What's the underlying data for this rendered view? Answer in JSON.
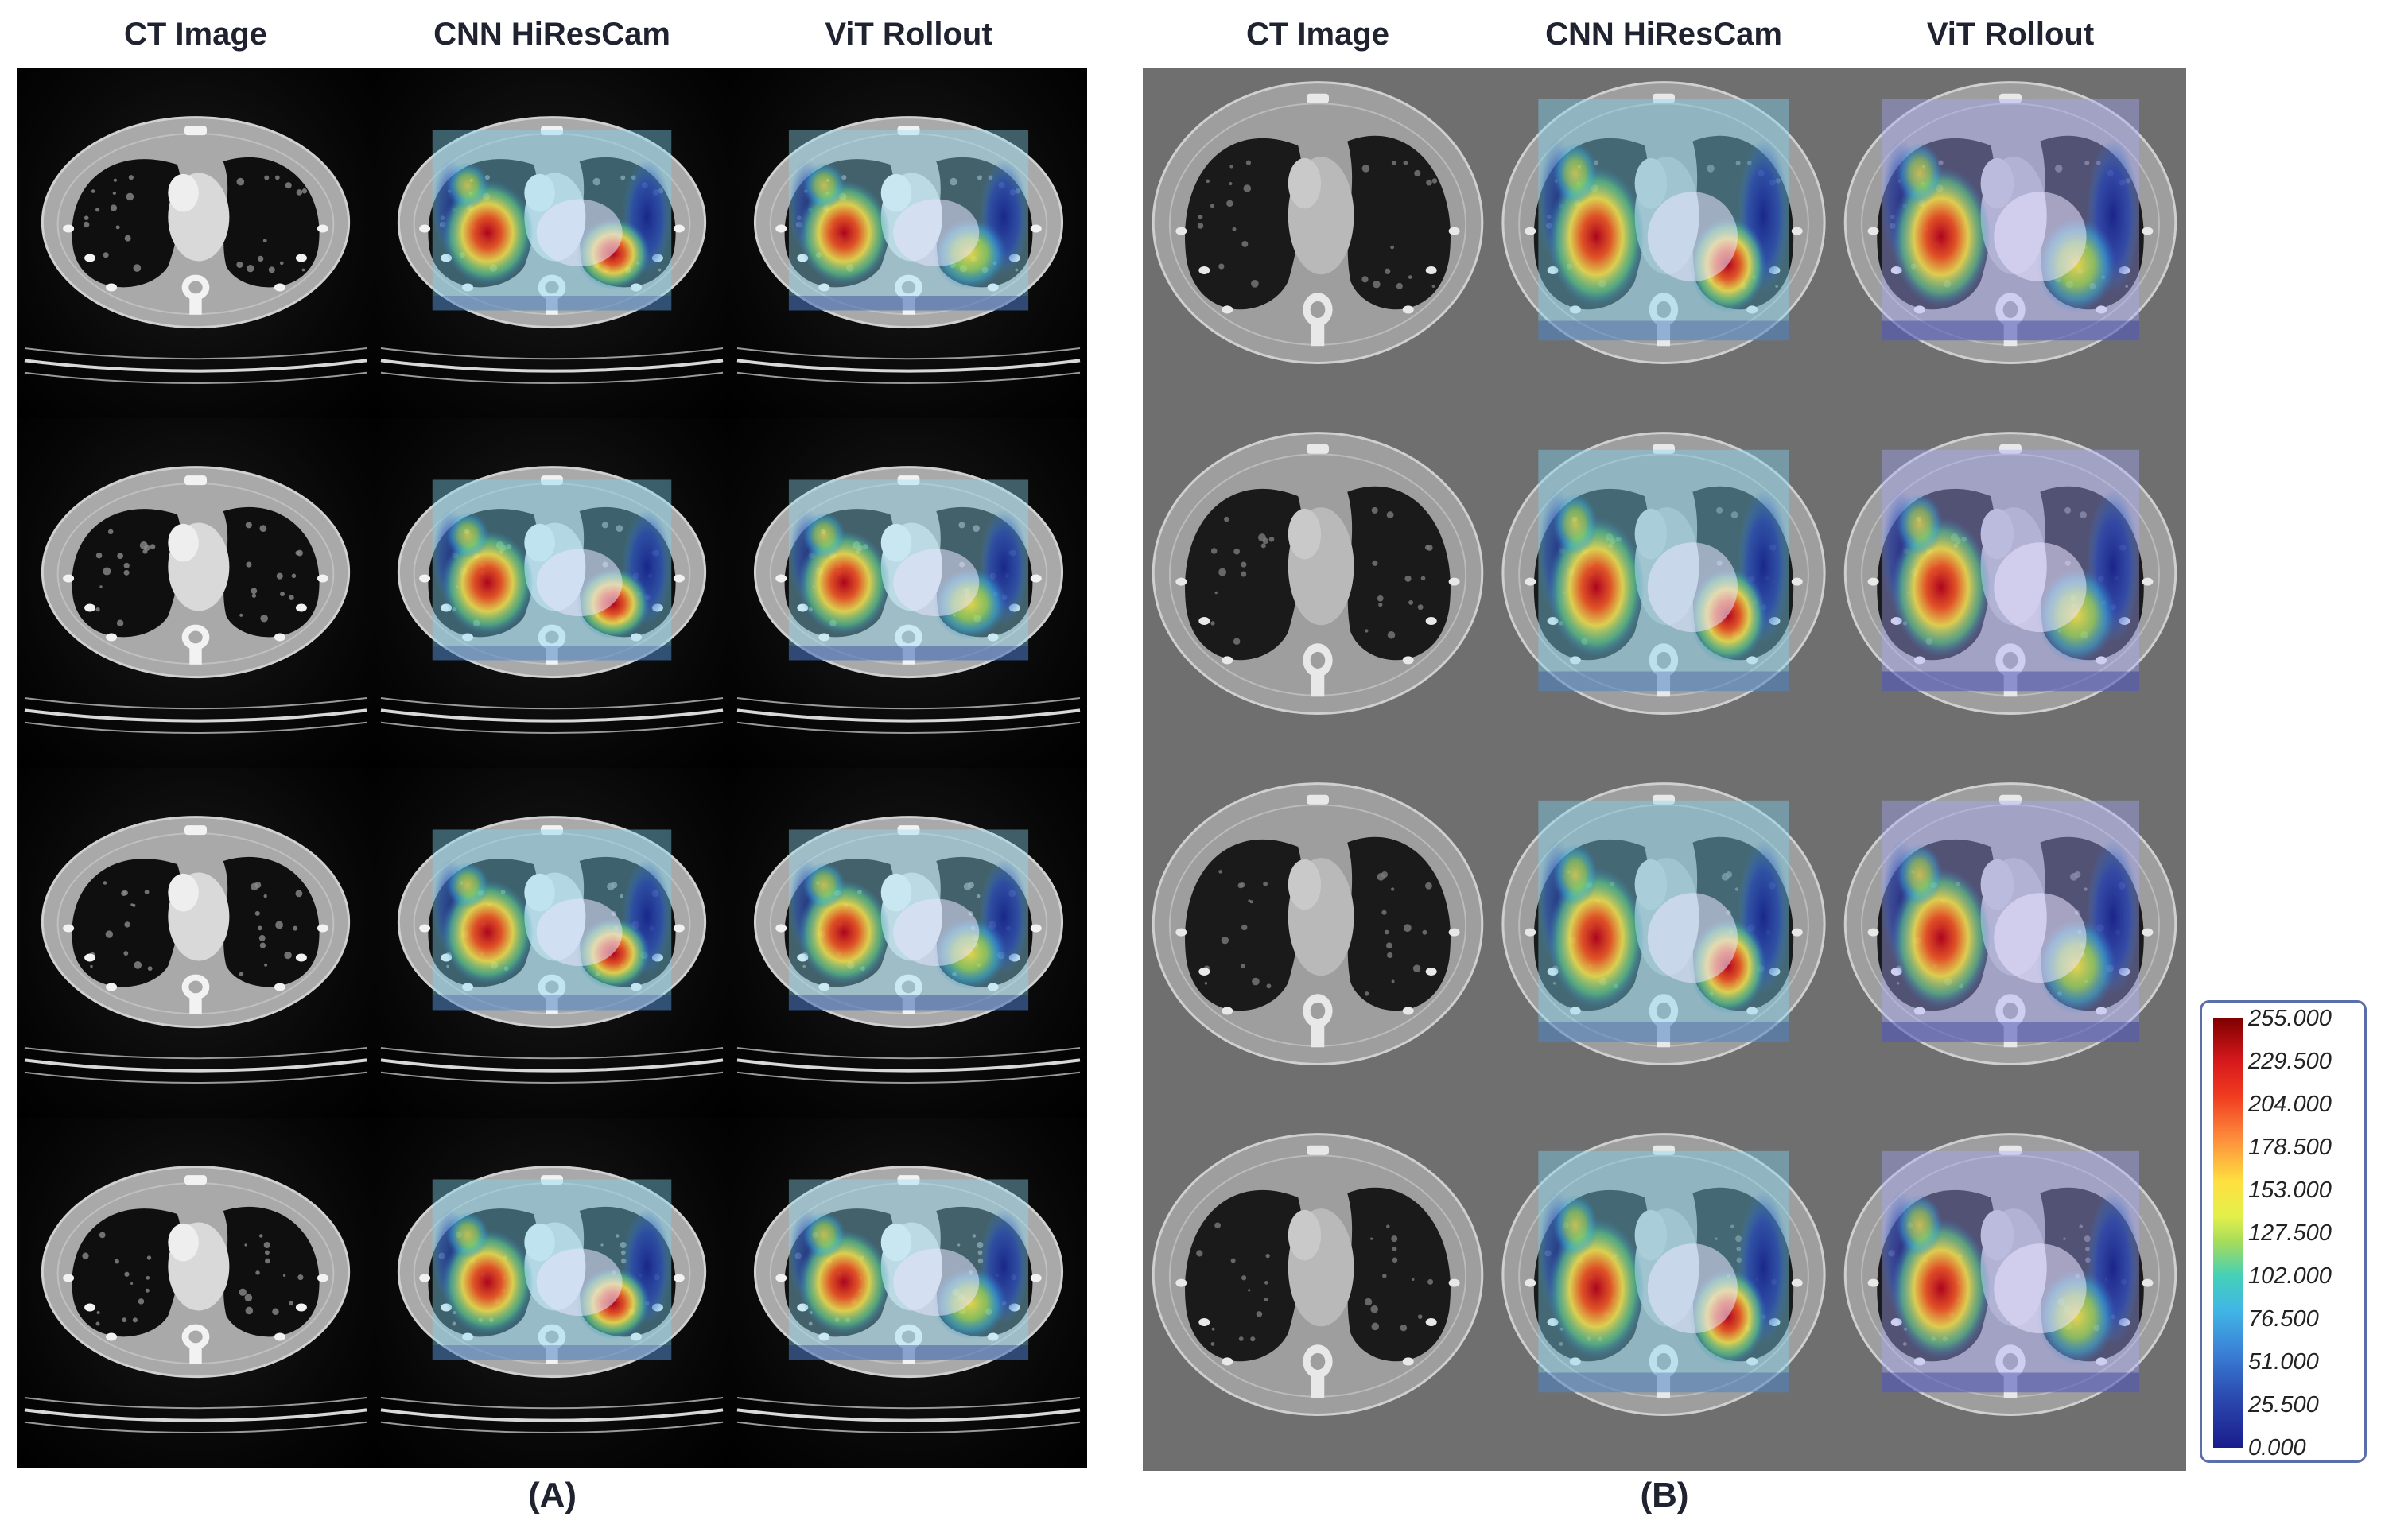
{
  "panel_a": {
    "headers": [
      "CT Image",
      "CNN HiResCam",
      "ViT Rollout"
    ],
    "label": "(A)"
  },
  "panel_b": {
    "headers": [
      "CT Image",
      "CNN HiResCam",
      "ViT Rollout"
    ],
    "label": "(B)"
  },
  "colorbar": {
    "ticks": [
      "255.000",
      "229.500",
      "204.000",
      "178.500",
      "153.000",
      "127.500",
      "102.000",
      "76.500",
      "51.000",
      "25.500",
      "0.000"
    ],
    "colormap": "jet",
    "min": 0,
    "max": 255
  },
  "colors": {
    "heat_high": "#b2001a",
    "heat_mid": "#f7e14a",
    "heat_low": "#1a2ea8",
    "overlay_tint": "#7fd6f0",
    "ct_tissue": "#bfbfbf",
    "ct_lung": "#111111"
  }
}
